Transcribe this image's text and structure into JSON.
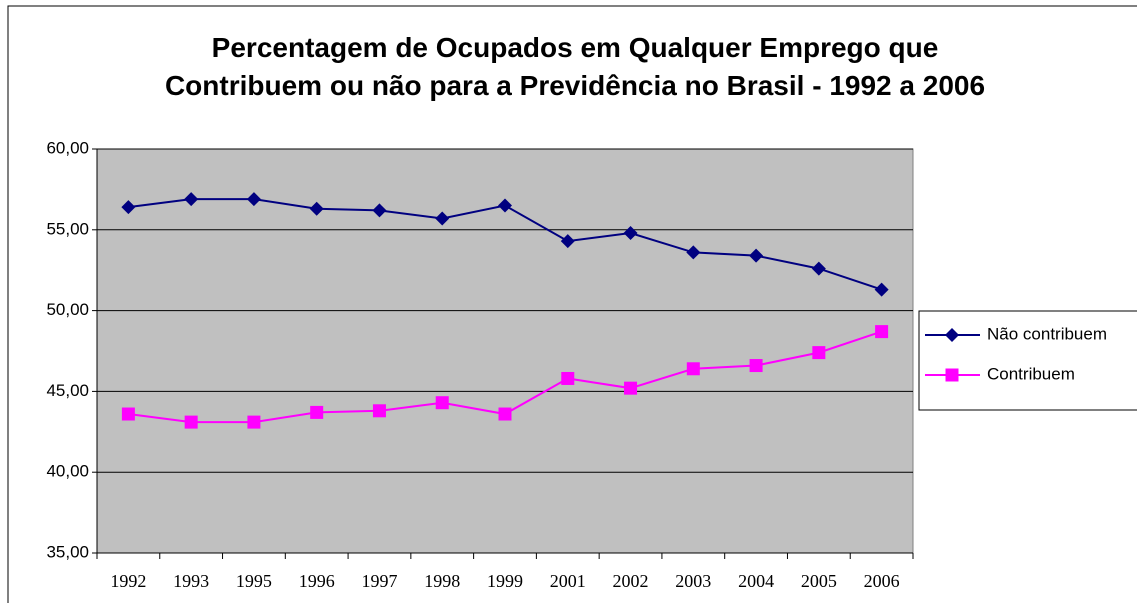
{
  "chart_data": {
    "type": "line",
    "title": "Percentagem de Ocupados em Qualquer Emprego que Contribuem ou não para a Previdência no Brasil - 1992 a 2006",
    "categories": [
      "1992",
      "1993",
      "1995",
      "1996",
      "1997",
      "1998",
      "1999",
      "2001",
      "2002",
      "2003",
      "2004",
      "2005",
      "2006"
    ],
    "series": [
      {
        "name": "Não contribuem",
        "color": "#000080",
        "marker": "diamond",
        "values": [
          56.4,
          56.9,
          56.9,
          56.3,
          56.2,
          55.7,
          56.5,
          54.3,
          54.8,
          53.6,
          53.4,
          52.6,
          51.3
        ]
      },
      {
        "name": "Contribuem",
        "color": "#ff00ff",
        "marker": "square",
        "values": [
          43.6,
          43.1,
          43.1,
          43.7,
          43.8,
          44.3,
          43.6,
          45.8,
          45.2,
          46.4,
          46.6,
          47.4,
          48.7
        ]
      }
    ],
    "ylim": [
      35,
      60
    ],
    "yticks": [
      {
        "value": 35,
        "label": "35,00"
      },
      {
        "value": 40,
        "label": "40,00"
      },
      {
        "value": 45,
        "label": "45,00"
      },
      {
        "value": 50,
        "label": "50,00"
      },
      {
        "value": 55,
        "label": "55,00"
      },
      {
        "value": 60,
        "label": "60,00"
      }
    ],
    "grid": true,
    "legend": "right"
  }
}
